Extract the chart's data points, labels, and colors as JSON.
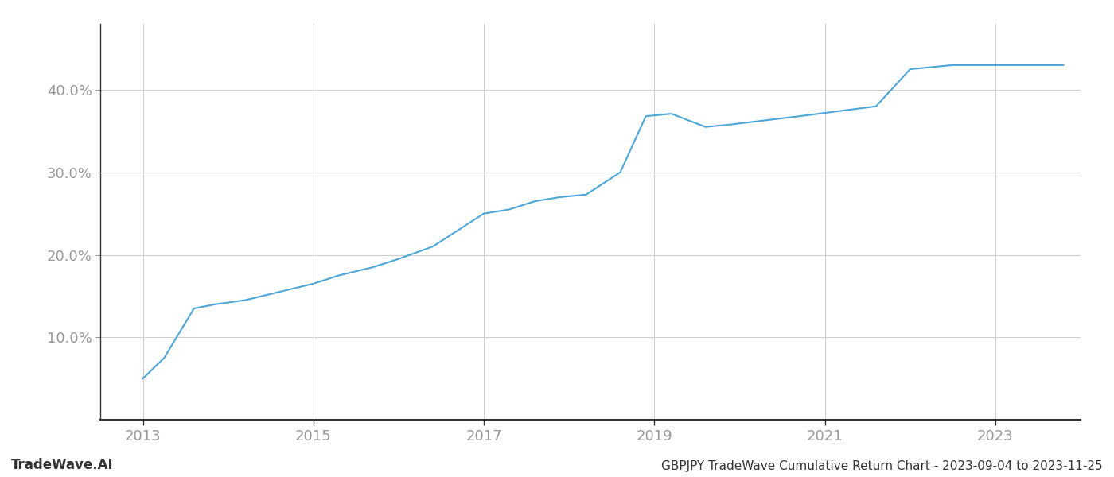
{
  "title": "GBPJPY TradeWave Cumulative Return Chart - 2023-09-04 to 2023-11-25",
  "watermark": "TradeWave.AI",
  "line_color": "#4da6d8",
  "background_color": "#ffffff",
  "grid_color": "#cccccc",
  "x_years": [
    2013.0,
    2013.25,
    2013.6,
    2013.85,
    2014.2,
    2014.6,
    2015.0,
    2015.3,
    2015.7,
    2016.0,
    2016.4,
    2016.7,
    2017.0,
    2017.3,
    2017.6,
    2017.9,
    2018.2,
    2018.6,
    2018.9,
    2019.2,
    2019.6,
    2019.9,
    2020.3,
    2020.7,
    2021.0,
    2021.3,
    2021.6,
    2022.0,
    2022.5,
    2022.8,
    2023.0,
    2023.8
  ],
  "y_values": [
    5.0,
    7.5,
    13.5,
    14.0,
    14.5,
    15.5,
    16.5,
    17.5,
    18.5,
    19.5,
    21.0,
    23.0,
    25.0,
    25.5,
    26.5,
    27.0,
    27.3,
    30.0,
    36.8,
    37.1,
    35.5,
    35.8,
    36.3,
    36.8,
    37.2,
    37.6,
    38.0,
    42.5,
    43.0,
    43.0,
    43.0,
    43.0
  ],
  "xlim": [
    2012.5,
    2024.0
  ],
  "ylim": [
    0,
    48
  ],
  "yticks": [
    10.0,
    20.0,
    30.0,
    40.0
  ],
  "xticks": [
    2013,
    2015,
    2017,
    2019,
    2021,
    2023
  ],
  "line_width": 1.5,
  "tick_color": "#999999",
  "label_color": "#999999",
  "spine_color": "#333333",
  "footer_color": "#333333"
}
